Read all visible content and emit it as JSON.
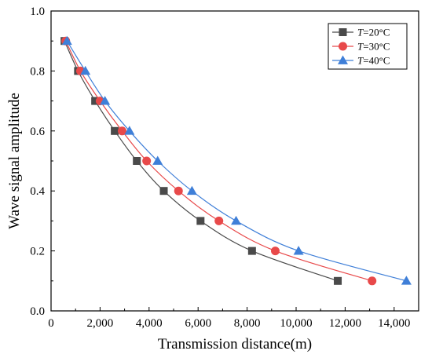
{
  "chart_data": {
    "type": "line",
    "xlabel": "Transmission distance(m)",
    "ylabel": "Wave signal amplitude",
    "xlim": [
      0,
      15000
    ],
    "ylim": [
      0,
      1.0
    ],
    "xticks": [
      0,
      2000,
      4000,
      6000,
      8000,
      10000,
      12000,
      14000
    ],
    "xtick_labels": [
      "0",
      "2,000",
      "4,000",
      "6,000",
      "8,000",
      "10,000",
      "12,000",
      "14,000"
    ],
    "yticks": [
      0,
      0.2,
      0.4,
      0.6,
      0.8,
      1.0
    ],
    "ytick_labels": [
      "0.0",
      "0.2",
      "0.4",
      "0.6",
      "0.8",
      "1.0"
    ],
    "legend_position": "top-right",
    "series": [
      {
        "name": "T=20°C",
        "name_italic": "T",
        "name_rest": "=20°C",
        "marker": "square",
        "color": "#4a4a4a",
        "points": [
          {
            "x": 550,
            "y": 0.9
          },
          {
            "x": 1100,
            "y": 0.8
          },
          {
            "x": 1800,
            "y": 0.7
          },
          {
            "x": 2600,
            "y": 0.6
          },
          {
            "x": 3500,
            "y": 0.5
          },
          {
            "x": 4600,
            "y": 0.4
          },
          {
            "x": 6100,
            "y": 0.3
          },
          {
            "x": 8200,
            "y": 0.2
          },
          {
            "x": 11700,
            "y": 0.1
          }
        ]
      },
      {
        "name": "T=30°C",
        "name_italic": "T",
        "name_rest": "=30°C",
        "marker": "circle",
        "color": "#e8494a",
        "points": [
          {
            "x": 600,
            "y": 0.9
          },
          {
            "x": 1200,
            "y": 0.8
          },
          {
            "x": 2000,
            "y": 0.7
          },
          {
            "x": 2900,
            "y": 0.6
          },
          {
            "x": 3900,
            "y": 0.5
          },
          {
            "x": 5200,
            "y": 0.4
          },
          {
            "x": 6850,
            "y": 0.3
          },
          {
            "x": 9150,
            "y": 0.2
          },
          {
            "x": 13100,
            "y": 0.1
          }
        ]
      },
      {
        "name": "T=40°C",
        "name_italic": "T",
        "name_rest": "=40°C",
        "marker": "triangle",
        "color": "#3f7fd8",
        "points": [
          {
            "x": 650,
            "y": 0.9
          },
          {
            "x": 1400,
            "y": 0.8
          },
          {
            "x": 2200,
            "y": 0.7
          },
          {
            "x": 3200,
            "y": 0.6
          },
          {
            "x": 4350,
            "y": 0.5
          },
          {
            "x": 5750,
            "y": 0.4
          },
          {
            "x": 7550,
            "y": 0.3
          },
          {
            "x": 10100,
            "y": 0.2
          },
          {
            "x": 14500,
            "y": 0.1
          }
        ]
      }
    ]
  }
}
